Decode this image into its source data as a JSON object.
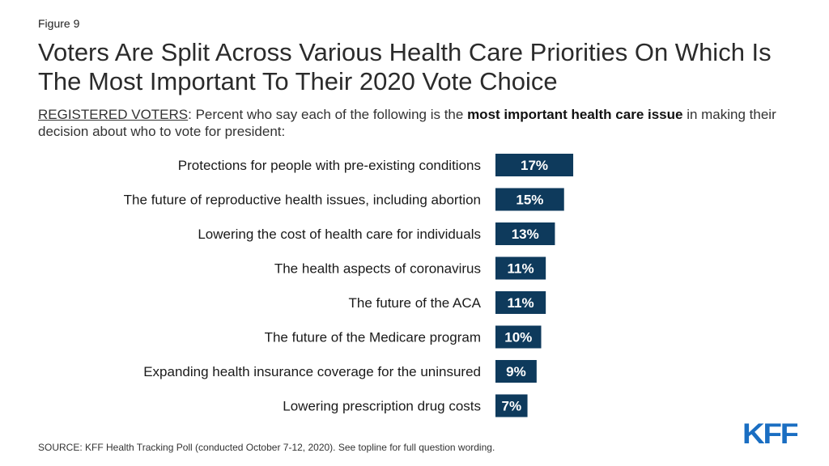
{
  "figure_label": "Figure 9",
  "title": "Voters Are Split Across Various Health Care Priorities On Which Is The Most Important To Their 2020 Vote Choice",
  "subtitle": {
    "prefix": "REGISTERED VOTERS",
    "text_before_bold": ": Percent who say each of the following is the ",
    "bold": "most important health care issue",
    "text_after_bold": " in making their decision about who to vote for president:"
  },
  "source": "SOURCE: KFF Health Tracking Poll (conducted October 7-12, 2020). See topline for full question wording.",
  "logo_text": "KFF",
  "colors": {
    "bar": "#0e3a5c",
    "bar_label": "#ffffff",
    "logo": "#1a6ec2"
  },
  "chart_data": {
    "type": "bar",
    "orientation": "horizontal",
    "categories": [
      "Protections for people with pre-existing conditions",
      "The future of reproductive health issues, including abortion",
      "Lowering the cost of health care for individuals",
      "The health aspects of coronavirus",
      "The future of the ACA",
      "The future of the Medicare program",
      "Expanding health insurance coverage for the uninsured",
      "Lowering prescription drug costs"
    ],
    "values": [
      17,
      15,
      13,
      11,
      11,
      10,
      9,
      7
    ],
    "data_labels": [
      "17%",
      "15%",
      "13%",
      "11%",
      "11%",
      "10%",
      "9%",
      "7%"
    ],
    "unit": "%",
    "xlabel": "",
    "ylabel": "",
    "grid": false,
    "legend": "none"
  }
}
